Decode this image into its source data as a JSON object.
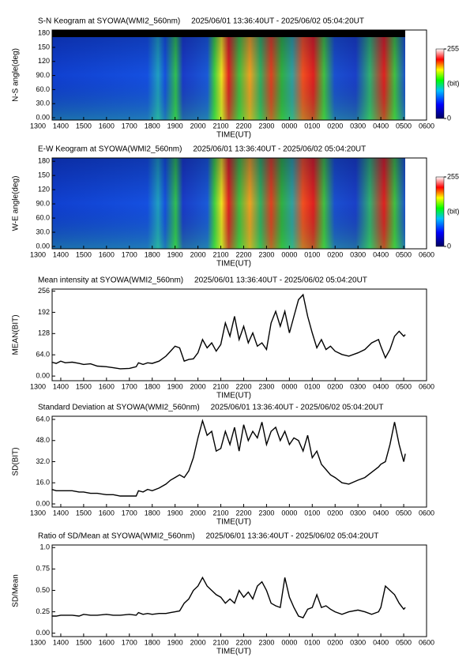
{
  "chart_data": [
    {
      "type": "keogram",
      "title": "S-N Keogram at SYOWA(WMI2_560nm)     2025/06/01 13:36:40UT - 2025/06/02 05:04:20UT",
      "ylabel": "N-S angle(deg)",
      "xlabel": "TIME(UT)",
      "xlim": [
        13,
        30
      ],
      "xticks": [
        {
          "value": 13,
          "label": "1300"
        },
        {
          "value": 14,
          "label": "1400"
        },
        {
          "value": 15,
          "label": "1500"
        },
        {
          "value": 16,
          "label": "1600"
        },
        {
          "value": 17,
          "label": "1700"
        },
        {
          "value": 18,
          "label": "1800"
        },
        {
          "value": 19,
          "label": "1900"
        },
        {
          "value": 20,
          "label": "2000"
        },
        {
          "value": 21,
          "label": "2100"
        },
        {
          "value": 22,
          "label": "2200"
        },
        {
          "value": 23,
          "label": "2300"
        },
        {
          "value": 24,
          "label": "0000"
        },
        {
          "value": 25,
          "label": "0100"
        },
        {
          "value": 26,
          "label": "0200"
        },
        {
          "value": 27,
          "label": "0300"
        },
        {
          "value": 28,
          "label": "0400"
        },
        {
          "value": 29,
          "label": "0500"
        },
        {
          "value": 30,
          "label": "0600"
        }
      ],
      "ylim": [
        -5,
        187
      ],
      "yticks": [
        {
          "value": 0,
          "label": "0.00"
        },
        {
          "value": 30,
          "label": "30.0"
        },
        {
          "value": 60,
          "label": "60.0"
        },
        {
          "value": 90,
          "label": "90.0"
        },
        120,
        150,
        180
      ],
      "clim": [
        0,
        255
      ],
      "cticks": [
        0,
        255
      ],
      "clabel": "(bit)"
    },
    {
      "type": "keogram",
      "title": "E-W Keogram at SYOWA(WMI2_560nm)     2025/06/01 13:36:40UT - 2025/06/02 05:04:20UT",
      "ylabel": "W-E angle(deg)",
      "xlabel": "TIME(UT)",
      "xlim": [
        13,
        30
      ],
      "xticks": [
        {
          "value": 13,
          "label": "1300"
        },
        {
          "value": 14,
          "label": "1400"
        },
        {
          "value": 15,
          "label": "1500"
        },
        {
          "value": 16,
          "label": "1600"
        },
        {
          "value": 17,
          "label": "1700"
        },
        {
          "value": 18,
          "label": "1800"
        },
        {
          "value": 19,
          "label": "1900"
        },
        {
          "value": 20,
          "label": "2000"
        },
        {
          "value": 21,
          "label": "2100"
        },
        {
          "value": 22,
          "label": "2200"
        },
        {
          "value": 23,
          "label": "2300"
        },
        {
          "value": 24,
          "label": "0000"
        },
        {
          "value": 25,
          "label": "0100"
        },
        {
          "value": 26,
          "label": "0200"
        },
        {
          "value": 27,
          "label": "0300"
        },
        {
          "value": 28,
          "label": "0400"
        },
        {
          "value": 29,
          "label": "0500"
        },
        {
          "value": 30,
          "label": "0600"
        }
      ],
      "ylim": [
        -5,
        187
      ],
      "yticks": [
        {
          "value": 0,
          "label": "0.00"
        },
        {
          "value": 30,
          "label": "30.0"
        },
        {
          "value": 60,
          "label": "60.0"
        },
        {
          "value": 90,
          "label": "90.0"
        },
        120,
        150,
        180
      ],
      "clim": [
        0,
        255
      ],
      "cticks": [
        0,
        255
      ],
      "clabel": "(bit)"
    },
    {
      "type": "line",
      "title": "Mean intensity at SYOWA(WMI2_560nm)     2025/06/01 13:36:40UT - 2025/06/02 05:04:20UT",
      "ylabel": "MEAN(BIT)",
      "xlabel": "TIME(UT)",
      "color": "#000000",
      "xlim": [
        13,
        30
      ],
      "xticks": [
        {
          "value": 13,
          "label": "1300"
        },
        {
          "value": 14,
          "label": "1400"
        },
        {
          "value": 15,
          "label": "1500"
        },
        {
          "value": 16,
          "label": "1600"
        },
        {
          "value": 17,
          "label": "1700"
        },
        {
          "value": 18,
          "label": "1800"
        },
        {
          "value": 19,
          "label": "1900"
        },
        {
          "value": 20,
          "label": "2000"
        },
        {
          "value": 21,
          "label": "2100"
        },
        {
          "value": 22,
          "label": "2200"
        },
        {
          "value": 23,
          "label": "2300"
        },
        {
          "value": 24,
          "label": "0000"
        },
        {
          "value": 25,
          "label": "0100"
        },
        {
          "value": 26,
          "label": "0200"
        },
        {
          "value": 27,
          "label": "0300"
        },
        {
          "value": 28,
          "label": "0400"
        },
        {
          "value": 29,
          "label": "0500"
        },
        {
          "value": 30,
          "label": "0600"
        }
      ],
      "ylim": [
        -14,
        262
      ],
      "yticks": [
        {
          "value": 0,
          "label": "0.00"
        },
        {
          "value": 64,
          "label": "64.0"
        },
        128,
        192,
        256
      ],
      "x": [
        13.6,
        13.8,
        14.0,
        14.2,
        14.5,
        14.8,
        15.0,
        15.3,
        15.6,
        16.0,
        16.3,
        16.6,
        17.0,
        17.3,
        17.4,
        17.6,
        17.8,
        18.0,
        18.3,
        18.6,
        18.8,
        19.0,
        19.2,
        19.4,
        19.6,
        19.8,
        20.0,
        20.2,
        20.4,
        20.6,
        20.8,
        21.0,
        21.2,
        21.4,
        21.6,
        21.8,
        22.0,
        22.2,
        22.4,
        22.6,
        22.8,
        23.0,
        23.2,
        23.4,
        23.6,
        23.8,
        24.0,
        24.2,
        24.4,
        24.6,
        24.8,
        25.0,
        25.2,
        25.4,
        25.6,
        25.8,
        26.0,
        26.3,
        26.6,
        27.0,
        27.3,
        27.6,
        27.9,
        28.0,
        28.2,
        28.4,
        28.6,
        28.8,
        29.0,
        29.07
      ],
      "values": [
        42,
        38,
        45,
        40,
        42,
        38,
        35,
        37,
        30,
        28,
        25,
        22,
        23,
        28,
        40,
        35,
        40,
        38,
        45,
        60,
        75,
        90,
        85,
        45,
        50,
        52,
        70,
        110,
        85,
        100,
        75,
        95,
        160,
        120,
        180,
        110,
        150,
        100,
        130,
        90,
        100,
        80,
        160,
        195,
        150,
        195,
        130,
        180,
        230,
        245,
        180,
        130,
        85,
        110,
        80,
        90,
        75,
        65,
        60,
        70,
        80,
        100,
        110,
        90,
        55,
        80,
        120,
        135,
        120,
        125
      ]
    },
    {
      "type": "line",
      "title": "Standard Deviation at SYOWA(WMI2_560nm)     2025/06/01 13:36:40UT - 2025/06/02 05:04:20UT",
      "ylabel": "SD(BIT)",
      "xlabel": "TIME(UT)",
      "color": "#000000",
      "xlim": [
        13,
        30
      ],
      "xticks": [
        {
          "value": 13,
          "label": "1300"
        },
        {
          "value": 14,
          "label": "1400"
        },
        {
          "value": 15,
          "label": "1500"
        },
        {
          "value": 16,
          "label": "1600"
        },
        {
          "value": 17,
          "label": "1700"
        },
        {
          "value": 18,
          "label": "1800"
        },
        {
          "value": 19,
          "label": "1900"
        },
        {
          "value": 20,
          "label": "2000"
        },
        {
          "value": 21,
          "label": "2100"
        },
        {
          "value": 22,
          "label": "2200"
        },
        {
          "value": 23,
          "label": "2300"
        },
        {
          "value": 24,
          "label": "0000"
        },
        {
          "value": 25,
          "label": "0100"
        },
        {
          "value": 26,
          "label": "0200"
        },
        {
          "value": 27,
          "label": "0300"
        },
        {
          "value": 28,
          "label": "0400"
        },
        {
          "value": 29,
          "label": "0500"
        },
        {
          "value": 30,
          "label": "0600"
        }
      ],
      "ylim": [
        -2.4,
        66.4
      ],
      "yticks": [
        {
          "value": 0,
          "label": "0.00"
        },
        {
          "value": 16,
          "label": "16.0"
        },
        {
          "value": 32,
          "label": "32.0"
        },
        {
          "value": 48,
          "label": "48.0"
        },
        {
          "value": 64,
          "label": "64.0"
        }
      ],
      "x": [
        13.6,
        13.8,
        14.0,
        14.2,
        14.5,
        14.8,
        15.0,
        15.3,
        15.6,
        16.0,
        16.3,
        16.6,
        17.0,
        17.3,
        17.4,
        17.6,
        17.8,
        18.0,
        18.3,
        18.6,
        18.8,
        19.0,
        19.2,
        19.4,
        19.6,
        19.8,
        20.0,
        20.2,
        20.4,
        20.6,
        20.8,
        21.0,
        21.2,
        21.4,
        21.6,
        21.8,
        22.0,
        22.2,
        22.4,
        22.6,
        22.8,
        23.0,
        23.2,
        23.4,
        23.6,
        23.8,
        24.0,
        24.2,
        24.4,
        24.6,
        24.8,
        25.0,
        25.2,
        25.4,
        25.6,
        25.8,
        26.0,
        26.3,
        26.6,
        27.0,
        27.3,
        27.6,
        27.9,
        28.0,
        28.2,
        28.4,
        28.6,
        28.8,
        29.0,
        29.07
      ],
      "values": [
        11,
        10,
        10,
        10,
        10,
        9,
        9,
        8,
        8,
        7,
        7,
        6,
        6,
        6,
        10,
        9,
        11,
        10,
        12,
        15,
        18,
        20,
        22,
        20,
        25,
        35,
        50,
        63,
        52,
        55,
        40,
        42,
        55,
        45,
        58,
        40,
        60,
        48,
        55,
        50,
        62,
        45,
        55,
        58,
        48,
        55,
        45,
        50,
        48,
        40,
        52,
        35,
        40,
        30,
        26,
        22,
        20,
        16,
        15,
        18,
        20,
        24,
        28,
        30,
        32,
        45,
        62,
        45,
        32,
        38
      ]
    },
    {
      "type": "line",
      "title": "Ratio of SD/Mean at SYOWA(WMI2_560nm)     2025/06/01 13:36:40UT - 2025/06/02 05:04:20UT",
      "ylabel": "SD/Mean",
      "xlabel": "TIME(UT)",
      "color": "#000000",
      "xlim": [
        13,
        30
      ],
      "xticks": [
        {
          "value": 13,
          "label": "1300"
        },
        {
          "value": 14,
          "label": "1400"
        },
        {
          "value": 15,
          "label": "1500"
        },
        {
          "value": 16,
          "label": "1600"
        },
        {
          "value": 17,
          "label": "1700"
        },
        {
          "value": 18,
          "label": "1800"
        },
        {
          "value": 19,
          "label": "1900"
        },
        {
          "value": 20,
          "label": "2000"
        },
        {
          "value": 21,
          "label": "2100"
        },
        {
          "value": 22,
          "label": "2200"
        },
        {
          "value": 23,
          "label": "2300"
        },
        {
          "value": 24,
          "label": "0000"
        },
        {
          "value": 25,
          "label": "0100"
        },
        {
          "value": 26,
          "label": "0200"
        },
        {
          "value": 27,
          "label": "0300"
        },
        {
          "value": 28,
          "label": "0400"
        },
        {
          "value": 29,
          "label": "0500"
        },
        {
          "value": 30,
          "label": "0600"
        }
      ],
      "ylim": [
        -0.04,
        1.03
      ],
      "yticks": [
        {
          "value": 0,
          "label": "0.00"
        },
        0.25,
        {
          "value": 0.5,
          "label": "0.50"
        },
        0.75,
        {
          "value": 1,
          "label": "1.0"
        }
      ],
      "x": [
        13.6,
        13.8,
        14.0,
        14.2,
        14.5,
        14.8,
        15.0,
        15.3,
        15.6,
        16.0,
        16.3,
        16.6,
        17.0,
        17.3,
        17.4,
        17.6,
        17.8,
        18.0,
        18.3,
        18.6,
        18.8,
        19.0,
        19.2,
        19.4,
        19.6,
        19.8,
        20.0,
        20.2,
        20.4,
        20.6,
        20.8,
        21.0,
        21.2,
        21.4,
        21.6,
        21.8,
        22.0,
        22.2,
        22.4,
        22.6,
        22.8,
        23.0,
        23.2,
        23.4,
        23.6,
        23.8,
        24.0,
        24.2,
        24.4,
        24.6,
        24.8,
        25.0,
        25.2,
        25.4,
        25.6,
        25.8,
        26.0,
        26.3,
        26.6,
        27.0,
        27.3,
        27.6,
        27.9,
        28.0,
        28.2,
        28.4,
        28.6,
        28.8,
        29.0,
        29.07
      ],
      "values": [
        0.2,
        0.2,
        0.21,
        0.21,
        0.21,
        0.2,
        0.22,
        0.21,
        0.21,
        0.22,
        0.21,
        0.21,
        0.22,
        0.21,
        0.24,
        0.22,
        0.23,
        0.22,
        0.23,
        0.23,
        0.24,
        0.25,
        0.26,
        0.35,
        0.4,
        0.5,
        0.55,
        0.65,
        0.55,
        0.5,
        0.45,
        0.42,
        0.35,
        0.4,
        0.35,
        0.5,
        0.42,
        0.48,
        0.4,
        0.55,
        0.6,
        0.5,
        0.35,
        0.32,
        0.3,
        0.65,
        0.42,
        0.3,
        0.2,
        0.18,
        0.28,
        0.3,
        0.45,
        0.3,
        0.32,
        0.28,
        0.25,
        0.22,
        0.25,
        0.27,
        0.25,
        0.22,
        0.25,
        0.3,
        0.55,
        0.5,
        0.45,
        0.35,
        0.28,
        0.3
      ]
    }
  ]
}
